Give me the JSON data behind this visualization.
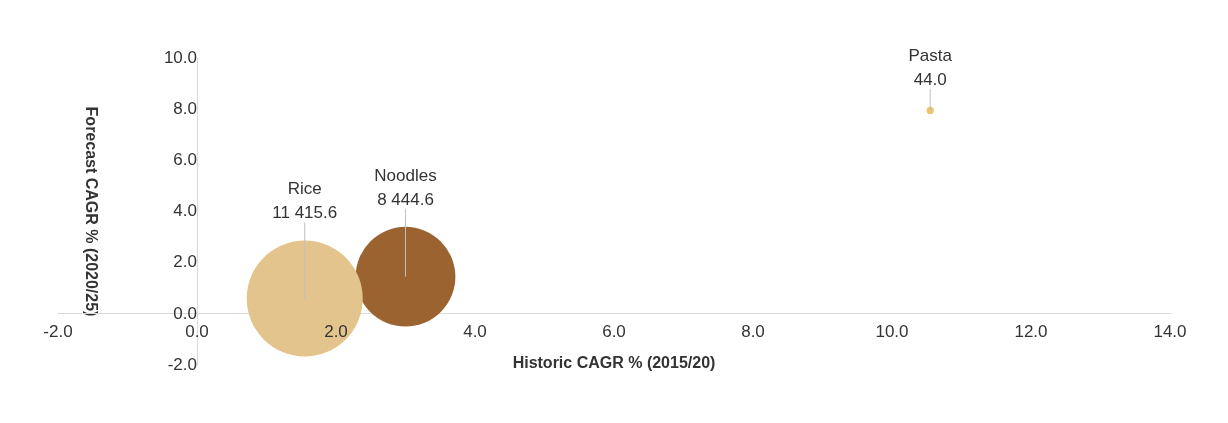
{
  "chart_data": {
    "type": "bubble",
    "xlabel": "Historic CAGR % (2015/20)",
    "ylabel": "Forecast CAGR % (2020/25)",
    "xlim": [
      -2,
      14
    ],
    "xticks": [
      {
        "value": -2,
        "label": "-2.0"
      },
      {
        "value": 0,
        "label": "0.0"
      },
      {
        "value": 2,
        "label": "2.0"
      },
      {
        "value": 4,
        "label": "4.0"
      },
      {
        "value": 6,
        "label": "6.0"
      },
      {
        "value": 8,
        "label": "8.0"
      },
      {
        "value": 10,
        "label": "10.0"
      },
      {
        "value": 12,
        "label": "12.0"
      },
      {
        "value": 14,
        "label": "14.0"
      }
    ],
    "ylim": [
      -2,
      10
    ],
    "yticks": [
      {
        "value": -2,
        "label": "-2.0"
      },
      {
        "value": 0,
        "label": "0.0"
      },
      {
        "value": 2,
        "label": "2.0"
      },
      {
        "value": 4,
        "label": "4.0"
      },
      {
        "value": 6,
        "label": "6.0"
      },
      {
        "value": 8,
        "label": "8.0"
      },
      {
        "value": 10,
        "label": "10.0"
      }
    ],
    "grid": false,
    "legend": false,
    "series": [
      {
        "name": "Rice",
        "color": "#e2c48c",
        "x": [
          1.55
        ],
        "values": [
          0.6
        ],
        "sizes": [
          11415.6
        ],
        "value_labels": [
          "11 415.6"
        ]
      },
      {
        "name": "Noodles",
        "color": "#9a6330",
        "x": [
          3.0
        ],
        "values": [
          1.45
        ],
        "sizes": [
          8444.6
        ],
        "value_labels": [
          "8 444.6"
        ]
      },
      {
        "name": "Pasta",
        "color": "#ecc46c",
        "x": [
          10.55
        ],
        "values": [
          7.95
        ],
        "sizes": [
          44.0
        ],
        "value_labels": [
          "44.0"
        ]
      }
    ]
  }
}
